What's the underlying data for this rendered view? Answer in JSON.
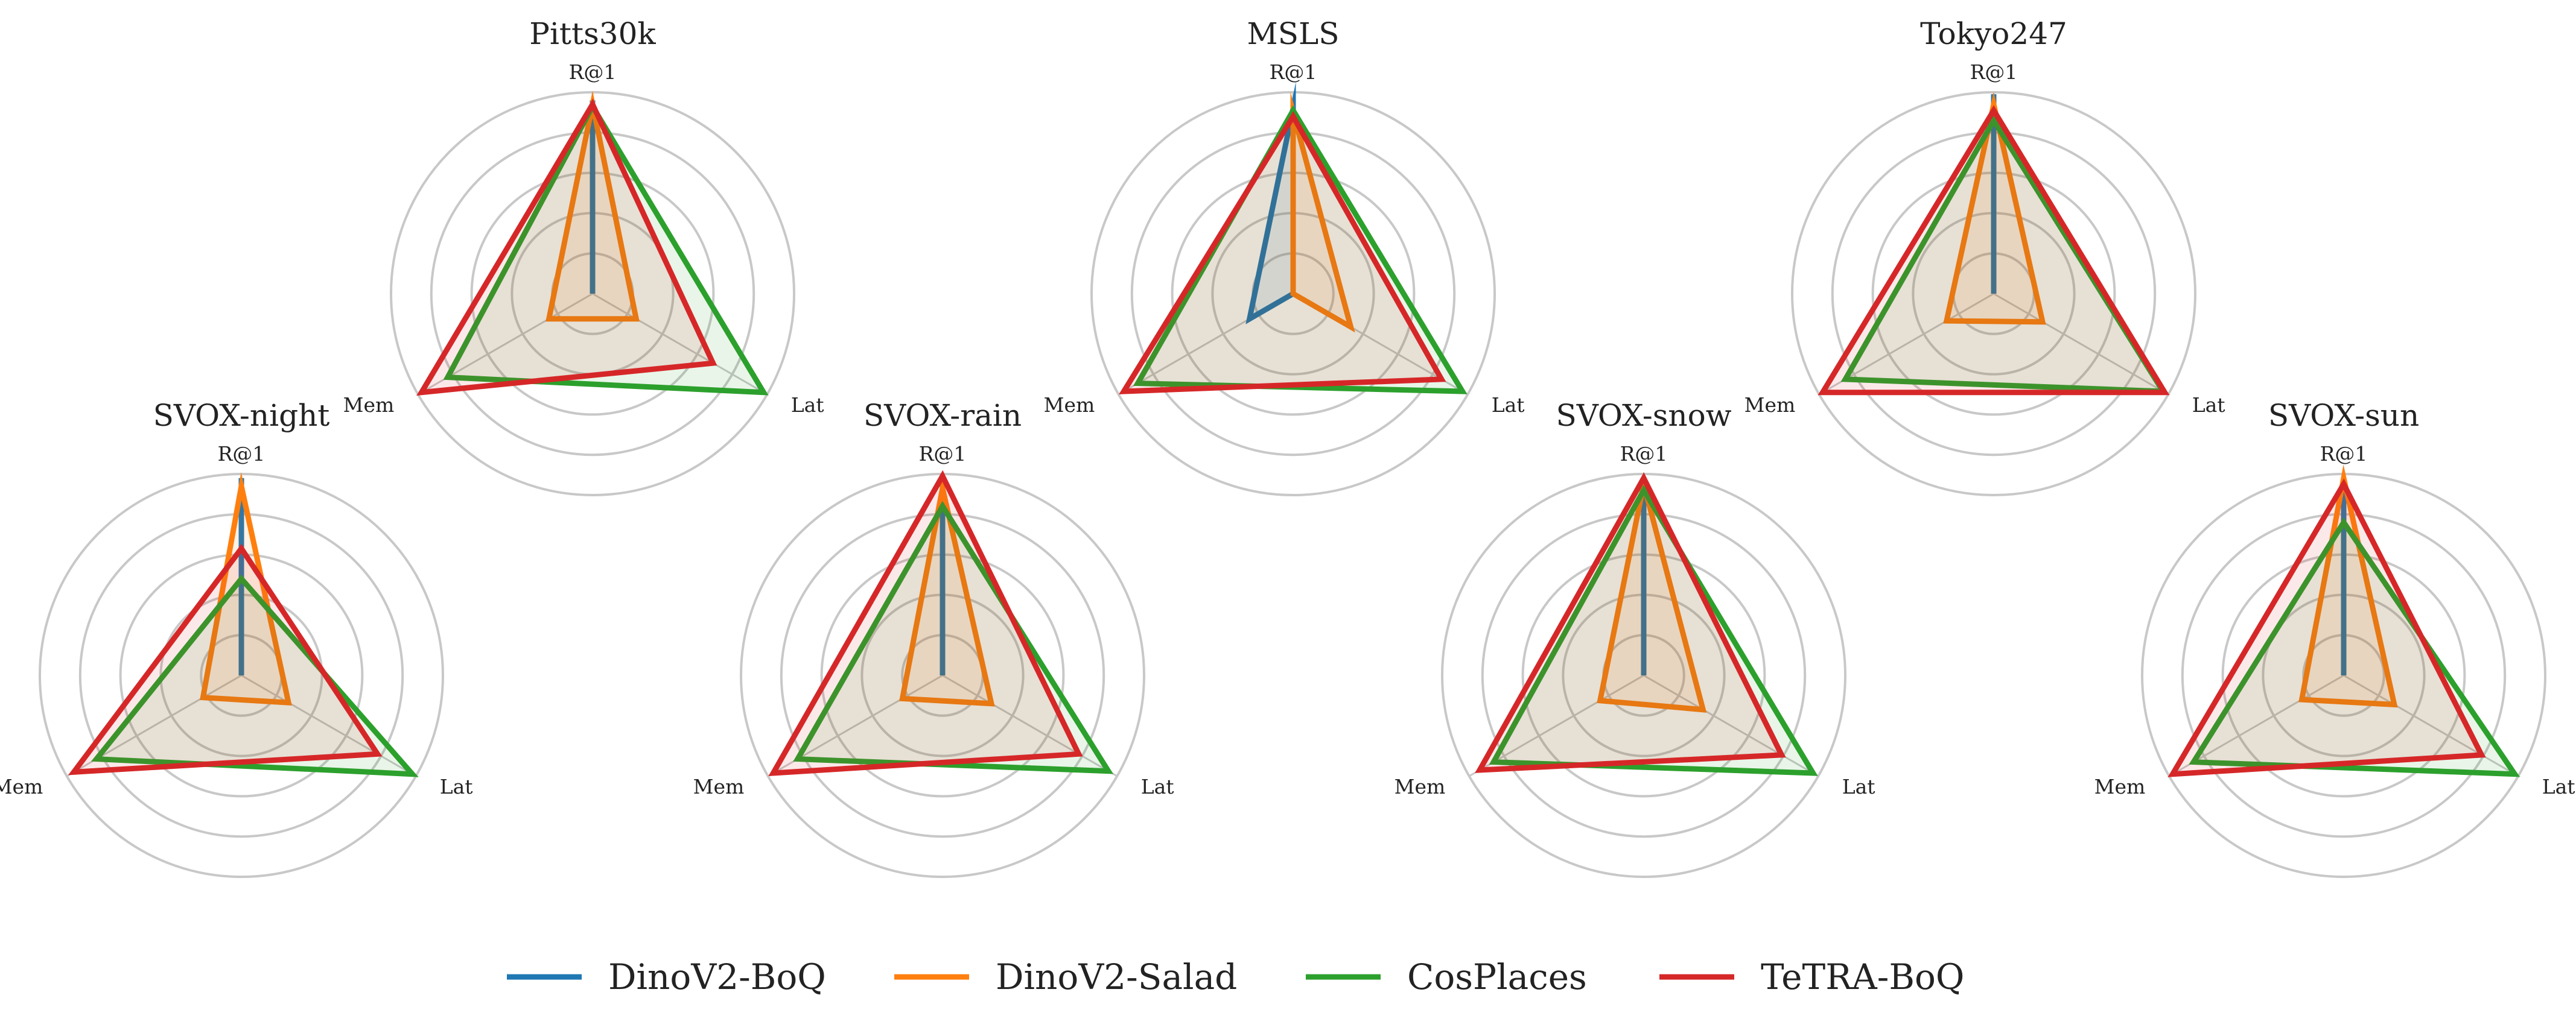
{
  "chart_data": {
    "type": "radar",
    "axes": [
      "R@1",
      "Lat",
      "Mem"
    ],
    "range": [
      0,
      1
    ],
    "grid_rings": 5,
    "legend_placement": "bottom-center",
    "series": [
      {
        "name": "DinoV2-BoQ",
        "color": "#1f77b4"
      },
      {
        "name": "DinoV2-Salad",
        "color": "#ff7f0e"
      },
      {
        "name": "CosPlaces",
        "color": "#2ca02c"
      },
      {
        "name": "TeTRA-BoQ",
        "color": "#d62728"
      }
    ],
    "charts": [
      {
        "title": "Pitts30k",
        "values": {
          "DinoV2-BoQ": [
            0.96,
            0.0,
            0.0
          ],
          "DinoV2-Salad": [
            0.94,
            0.25,
            0.25
          ],
          "CosPlaces": [
            0.93,
            0.98,
            0.83
          ],
          "TeTRA-BoQ": [
            0.94,
            0.69,
            0.98
          ]
        }
      },
      {
        "title": "MSLS",
        "values": {
          "DinoV2-BoQ": [
            0.92,
            0.0,
            0.25
          ],
          "DinoV2-Salad": [
            0.9,
            0.33,
            0.0
          ],
          "CosPlaces": [
            0.91,
            0.97,
            0.89
          ],
          "TeTRA-BoQ": [
            0.88,
            0.85,
            0.97
          ]
        }
      },
      {
        "title": "Tokyo247",
        "values": {
          "DinoV2-BoQ": [
            0.99,
            0.0,
            0.0
          ],
          "DinoV2-Salad": [
            0.94,
            0.28,
            0.27
          ],
          "CosPlaces": [
            0.86,
            0.97,
            0.85
          ],
          "TeTRA-BoQ": [
            0.91,
            0.98,
            0.98
          ]
        }
      },
      {
        "title": "SVOX-night",
        "values": {
          "DinoV2-BoQ": [
            0.98,
            0.0,
            0.0
          ],
          "DinoV2-Salad": [
            0.94,
            0.27,
            0.22
          ],
          "CosPlaces": [
            0.48,
            0.98,
            0.83
          ],
          "TeTRA-BoQ": [
            0.63,
            0.78,
            0.96
          ]
        }
      },
      {
        "title": "SVOX-rain",
        "values": {
          "DinoV2-BoQ": [
            0.96,
            0.0,
            0.0
          ],
          "DinoV2-Salad": [
            0.93,
            0.28,
            0.23
          ],
          "CosPlaces": [
            0.84,
            0.95,
            0.83
          ],
          "TeTRA-BoQ": [
            0.99,
            0.78,
            0.97
          ]
        }
      },
      {
        "title": "SVOX-snow",
        "values": {
          "DinoV2-BoQ": [
            0.92,
            0.0,
            0.0
          ],
          "DinoV2-Salad": [
            0.95,
            0.34,
            0.25
          ],
          "CosPlaces": [
            0.92,
            0.97,
            0.86
          ],
          "TeTRA-BoQ": [
            0.98,
            0.79,
            0.94
          ]
        }
      },
      {
        "title": "SVOX-sun",
        "values": {
          "DinoV2-BoQ": [
            0.94,
            0.0,
            0.0
          ],
          "DinoV2-Salad": [
            0.98,
            0.29,
            0.24
          ],
          "CosPlaces": [
            0.76,
            0.98,
            0.86
          ],
          "TeTRA-BoQ": [
            0.95,
            0.79,
            0.98
          ]
        }
      }
    ]
  }
}
